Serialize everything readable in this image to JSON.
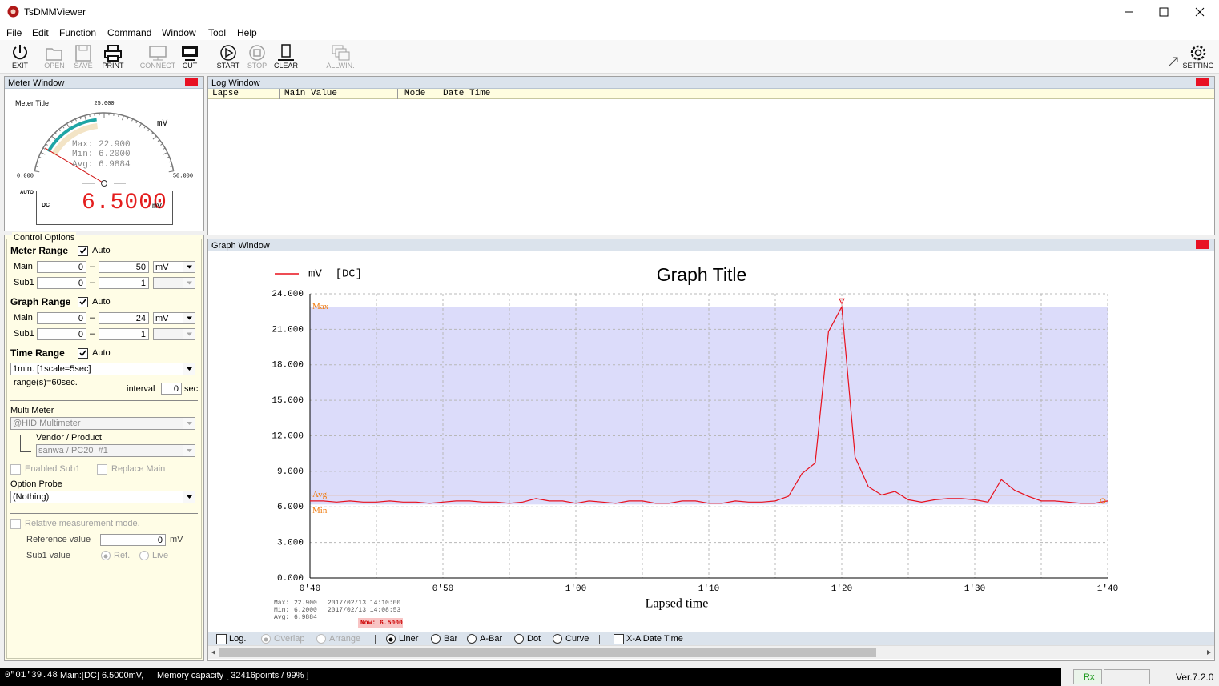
{
  "window": {
    "title": "TsDMMViewer"
  },
  "menu": [
    "File",
    "Edit",
    "Function",
    "Command",
    "Window",
    "Tool",
    "Help"
  ],
  "toolbar": [
    "EXIT",
    "OPEN",
    "SAVE",
    "PRINT",
    "CONNECT",
    "CUT",
    "START",
    "STOP",
    "CLEAR",
    "ALLWIN.",
    "SETTING"
  ],
  "meter_window": {
    "title": "Meter Window",
    "meter_title": "Meter Title",
    "unit": "mV",
    "stats": [
      "Max: 22.900",
      "Min: 6.2000",
      "Avg: 6.9884"
    ],
    "gauge": {
      "range": [
        0,
        50
      ],
      "ticks": [
        {
          "value": 0,
          "label": "0.000"
        },
        {
          "value": 25,
          "label": "25.000"
        },
        {
          "value": 50,
          "label": "50.000"
        }
      ],
      "value": 6.5,
      "value_label": "6.5000",
      "min": 6.2,
      "max": 22.9
    },
    "auto": "AUTO",
    "mode": "DC",
    "display_unit": "mV"
  },
  "log_window": {
    "title": "Log Window",
    "columns": [
      "Lapse",
      "Main Value",
      "Mode",
      "Date Time"
    ]
  },
  "control_options": {
    "title": "Control Options",
    "range_separator": "–",
    "meter_range": {
      "label": "Meter Range",
      "auto": "Auto",
      "main": {
        "label": "Main",
        "from": 0,
        "to": 50,
        "unit": "mV"
      },
      "sub1": {
        "label": "Sub1",
        "from": 0,
        "to": 1
      }
    },
    "graph_range": {
      "label": "Graph Range",
      "auto": "Auto",
      "main": {
        "label": "Main",
        "from": 0,
        "to": 24,
        "unit": "mV"
      },
      "sub1": {
        "label": "Sub1",
        "from": 0,
        "to": 1
      }
    },
    "time_range": {
      "label": "Time Range",
      "auto": "Auto",
      "scale": "1min. [1scale=5sec]",
      "range_text": "range(s)=60sec.",
      "interval_label": "interval",
      "interval": 0,
      "interval_unit": "sec."
    },
    "multi_meter": {
      "label": "Multi Meter",
      "device": "@HID Multimeter",
      "vendor_label": "Vendor / Product",
      "vendor": "sanwa / PC20  #1",
      "enabled_sub1": "Enabled Sub1",
      "replace_main": "Replace Main"
    },
    "option_probe": {
      "label": "Option Probe",
      "value": "(Nothing)"
    },
    "relative": {
      "label": "Relative measurement mode.",
      "reference_label": "Reference value",
      "reference": 0,
      "reference_unit": "mV",
      "sub1_label": "Sub1 value",
      "ref": "Ref.",
      "live": "Live"
    }
  },
  "graph_window": {
    "title": "Graph Window",
    "stats": [
      {
        "label": "Max:",
        "value": "22.900",
        "time": "2017/02/13 14:10:00"
      },
      {
        "label": "Min:",
        "value": "6.2000",
        "time": "2017/02/13 14:08:53"
      },
      {
        "label": "Avg:",
        "value": "6.9884"
      }
    ],
    "now": "Now: 6.5000",
    "options": [
      "Log.",
      "Overlap",
      "Arrange",
      "Liner",
      "Bar",
      "A-Bar",
      "Dot",
      "Curve",
      "X-A Date Time"
    ]
  },
  "chart_data": {
    "type": "line",
    "title": "Graph Title",
    "x_label": "Lapsed time",
    "x": [
      40,
      41,
      42,
      43,
      44,
      45,
      46,
      47,
      48,
      49,
      50,
      51,
      52,
      53,
      54,
      55,
      56,
      57,
      58,
      59,
      60,
      61,
      62,
      63,
      64,
      65,
      66,
      67,
      68,
      69,
      70,
      71,
      72,
      73,
      74,
      75,
      76,
      77,
      78,
      79,
      80,
      81,
      82,
      83,
      84,
      85,
      86,
      87,
      88,
      89,
      90,
      91,
      92,
      93,
      94,
      95,
      96,
      97,
      98,
      99,
      100
    ],
    "xlim": [
      40,
      100
    ],
    "xticks": [
      {
        "value": 40,
        "label": "0'40"
      },
      {
        "value": 50,
        "label": "0'50"
      },
      {
        "value": 60,
        "label": "1'00"
      },
      {
        "value": 70,
        "label": "1'10"
      },
      {
        "value": 80,
        "label": "1'20"
      },
      {
        "value": 90,
        "label": "1'30"
      },
      {
        "value": 100,
        "label": "1'40"
      }
    ],
    "x_minor_ticks": [
      45,
      55,
      65,
      75,
      85,
      95
    ],
    "ylim": [
      0,
      24
    ],
    "yticks": [
      {
        "value": 0,
        "label": "0.000"
      },
      {
        "value": 3,
        "label": "3.000"
      },
      {
        "value": 6,
        "label": "6.000"
      },
      {
        "value": 9,
        "label": "9.000"
      },
      {
        "value": 12,
        "label": "12.000"
      },
      {
        "value": 15,
        "label": "15.000"
      },
      {
        "value": 18,
        "label": "18.000"
      },
      {
        "value": 21,
        "label": "21.000"
      },
      {
        "value": 24,
        "label": "24.000"
      }
    ],
    "grid": true,
    "series": [
      {
        "name": "mV  [DC]",
        "color": "#e8101c",
        "values": [
          6.5,
          6.5,
          6.4,
          6.5,
          6.4,
          6.4,
          6.5,
          6.4,
          6.4,
          6.3,
          6.4,
          6.5,
          6.5,
          6.4,
          6.4,
          6.3,
          6.4,
          6.7,
          6.5,
          6.5,
          6.3,
          6.5,
          6.4,
          6.3,
          6.5,
          6.5,
          6.3,
          6.3,
          6.5,
          6.5,
          6.3,
          6.3,
          6.5,
          6.4,
          6.4,
          6.5,
          6.9,
          8.8,
          9.7,
          20.8,
          22.9,
          10.2,
          7.7,
          7.0,
          7.3,
          6.6,
          6.4,
          6.6,
          6.7,
          6.7,
          6.6,
          6.4,
          8.3,
          7.4,
          6.9,
          6.5,
          6.5,
          6.4,
          6.3,
          6.3,
          6.5
        ]
      }
    ],
    "reference_lines": [
      {
        "name": "Max",
        "value": 22.9
      },
      {
        "name": "Avg",
        "value": 6.9884
      },
      {
        "name": "Min",
        "value": 6.2
      }
    ],
    "reference_color": "#f07c10",
    "band_color": "#dcdcfa"
  },
  "status_bar": {
    "elapsed": "0\"01'39.48",
    "main": "Main:[DC] 6.5000mV,",
    "memory": "Memory capacity [ 32416points / 99% ]",
    "rx": "Rx",
    "version": "Ver.7.2.0"
  }
}
